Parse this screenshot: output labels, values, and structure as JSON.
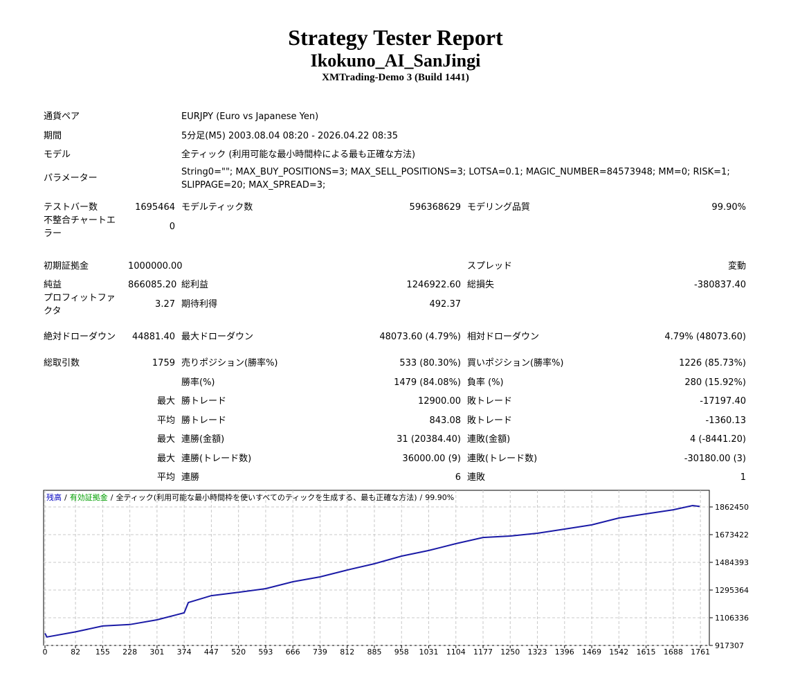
{
  "header": {
    "title": "Strategy Tester Report",
    "name": "Ikokuno_AI_SanJingi",
    "server": "XMTrading-Demo 3 (Build 1441)"
  },
  "info": [
    {
      "label": "通貨ペア",
      "value": "EURJPY (Euro vs Japanese Yen)"
    },
    {
      "label": "期間",
      "value": "5分足(M5) 2003.08.04 08:20 - 2026.04.22 08:35"
    },
    {
      "label": "モデル",
      "value": "全ティック (利用可能な最小時間枠による最も正確な方法)"
    },
    {
      "label": "パラメーター",
      "value": "String0=\"\"; MAX_BUY_POSITIONS=3; MAX_SELL_POSITIONS=3; LOTSA=0.1; MAGIC_NUMBER=84573948; MM=0; RISK=1; SLIPPAGE=20; MAX_SPREAD=3;"
    }
  ],
  "stats": [
    {
      "c1": {
        "label": "テストバー数",
        "value": "1695464"
      },
      "c2": {
        "label": "モデルティック数",
        "value": "596368629"
      },
      "c3": {
        "label": "モデリング品質",
        "value": "99.90%"
      }
    },
    {
      "c1": {
        "label": "不整合チャートエラー",
        "value": "0"
      }
    },
    {
      "c1": {
        "label": "初期証拠金",
        "value": "1000000.00"
      },
      "c3": {
        "label": "スプレッド",
        "value": "変動"
      }
    },
    {
      "c1": {
        "label": "純益",
        "value": "866085.20"
      },
      "c2": {
        "label": "総利益",
        "value": "1246922.60"
      },
      "c3": {
        "label": "総損失",
        "value": "-380837.40"
      }
    },
    {
      "c1": {
        "label": "プロフィットファクタ",
        "value": "3.27"
      },
      "c2": {
        "label": "期待利得",
        "value": "492.37"
      }
    },
    {
      "c1": {
        "label": "絶対ドローダウン",
        "value": "44881.40"
      },
      "c2": {
        "label": "最大ドローダウン",
        "value": "48073.60 (4.79%)"
      },
      "c3": {
        "label": "相対ドローダウン",
        "value": "4.79% (48073.60)"
      }
    },
    {
      "c1": {
        "label": "総取引数",
        "value": "1759"
      },
      "c2": {
        "label": "売りポジション(勝率%)",
        "value": "533 (80.30%)"
      },
      "c3": {
        "label": "買いポジション(勝率%)",
        "value": "1226 (85.73%)"
      }
    },
    {
      "c2": {
        "label": "勝率(%)",
        "value": "1479 (84.08%)"
      },
      "c3": {
        "label": "負率 (%)",
        "value": "280 (15.92%)"
      }
    },
    {
      "prefix": "最大",
      "c2": {
        "label": "勝トレード",
        "value": "12900.00"
      },
      "c3": {
        "label": "敗トレード",
        "value": "-17197.40"
      }
    },
    {
      "prefix": "平均",
      "c2": {
        "label": "勝トレード",
        "value": "843.08"
      },
      "c3": {
        "label": "敗トレード",
        "value": "-1360.13"
      }
    },
    {
      "prefix": "最大",
      "c2": {
        "label": "連勝(金額)",
        "value": "31 (20384.40)"
      },
      "c3": {
        "label": "連敗(金額)",
        "value": "4 (-8441.20)"
      }
    },
    {
      "prefix": "最大",
      "c2": {
        "label": "連勝(トレード数)",
        "value": "36000.00 (9)"
      },
      "c3": {
        "label": "連敗(トレード数)",
        "value": "-30180.00 (3)"
      }
    },
    {
      "prefix": "平均",
      "c2": {
        "label": "連勝",
        "value": "6"
      },
      "c3": {
        "label": "連敗",
        "value": "1"
      }
    }
  ],
  "chart_data": {
    "type": "line",
    "legend": [
      {
        "text": "残高",
        "color": "#0000c0"
      },
      {
        "text": "/",
        "color": "#000000"
      },
      {
        "text": "有効証拠金",
        "color": "#00a000"
      },
      {
        "text": "/",
        "color": "#000000"
      },
      {
        "text": "全ティック(利用可能な最小時間枠を使いすべてのティックを生成する、最も正確な方法)",
        "color": "#000000"
      },
      {
        "text": "/",
        "color": "#000000"
      },
      {
        "text": "99.90%",
        "color": "#000000"
      }
    ],
    "x": [
      0,
      5,
      82,
      155,
      228,
      301,
      374,
      385,
      447,
      520,
      593,
      666,
      739,
      812,
      885,
      958,
      1031,
      1104,
      1177,
      1250,
      1323,
      1396,
      1469,
      1542,
      1615,
      1688,
      1740,
      1759
    ],
    "series": [
      {
        "name": "残高",
        "color": "#1a1aa6",
        "values": [
          1000000,
          975000,
          1010000,
          1050000,
          1060000,
          1092000,
          1140000,
          1210000,
          1257000,
          1280000,
          1305000,
          1352000,
          1385000,
          1432000,
          1475000,
          1527000,
          1565000,
          1612000,
          1654000,
          1664000,
          1683000,
          1711000,
          1740000,
          1787000,
          1815000,
          1843000,
          1872000,
          1866085
        ]
      }
    ],
    "xlim": [
      0,
      1785
    ],
    "ylim": [
      917307,
      1966416
    ],
    "xticks": [
      0,
      82,
      155,
      228,
      301,
      374,
      447,
      520,
      593,
      666,
      739,
      812,
      885,
      958,
      1031,
      1104,
      1177,
      1250,
      1323,
      1396,
      1469,
      1542,
      1615,
      1688,
      1761
    ],
    "yticks": [
      917307,
      1106336,
      1295364,
      1484393,
      1673422,
      1862450
    ],
    "grid": true
  }
}
